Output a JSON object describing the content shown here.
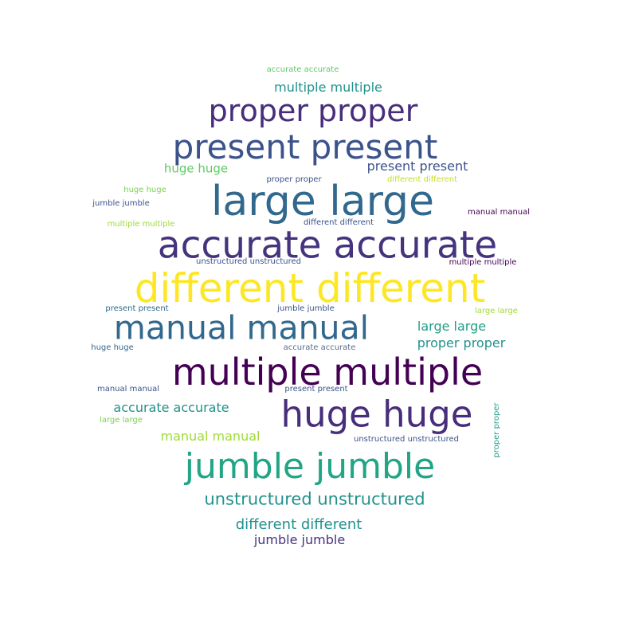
{
  "words": [
    {
      "text": "accurate accurate",
      "color": "#5ec962"
    },
    {
      "text": "multiple multiple",
      "color": "#21918c"
    },
    {
      "text": "proper proper",
      "color": "#472d7b"
    },
    {
      "text": "present present",
      "color": "#3b528b"
    },
    {
      "text": "huge huge",
      "color": "#5ec962"
    },
    {
      "text": "present present",
      "color": "#3b528b"
    },
    {
      "text": "proper proper",
      "color": "#3b528b"
    },
    {
      "text": "different different",
      "color": "#c8e020"
    },
    {
      "text": "huge huge",
      "color": "#7ad151"
    },
    {
      "text": "jumble jumble",
      "color": "#3b528b"
    },
    {
      "text": "large large",
      "color": "#31688e"
    },
    {
      "text": "manual manual",
      "color": "#440154"
    },
    {
      "text": "multiple multiple",
      "color": "#a0da39"
    },
    {
      "text": "different different",
      "color": "#3b528b"
    },
    {
      "text": "accurate accurate",
      "color": "#46337e"
    },
    {
      "text": "unstructured unstructured",
      "color": "#3b528b"
    },
    {
      "text": "multiple multiple",
      "color": "#440154"
    },
    {
      "text": "different different",
      "color": "#fde725"
    },
    {
      "text": "present present",
      "color": "#31688e"
    },
    {
      "text": "jumble jumble",
      "color": "#3b528b"
    },
    {
      "text": "large large",
      "color": "#a0da39"
    },
    {
      "text": "manual manual",
      "color": "#31688e"
    },
    {
      "text": "large large",
      "color": "#1f9e89"
    },
    {
      "text": "proper proper",
      "color": "#21918c"
    },
    {
      "text": "huge huge",
      "color": "#31688e"
    },
    {
      "text": "accurate accurate",
      "color": "#5b6b8c"
    },
    {
      "text": "multiple multiple",
      "color": "#440154"
    },
    {
      "text": "manual manual",
      "color": "#3b528b"
    },
    {
      "text": "present present",
      "color": "#3b528b"
    },
    {
      "text": "accurate accurate",
      "color": "#21918c"
    },
    {
      "text": "huge huge",
      "color": "#472d7b"
    },
    {
      "text": "large large",
      "color": "#7ad151"
    },
    {
      "text": "manual manual",
      "color": "#a0da39"
    },
    {
      "text": "unstructured unstructured",
      "color": "#3b528b"
    },
    {
      "text": "proper proper",
      "color": "#1f9e89"
    },
    {
      "text": "jumble jumble",
      "color": "#21a585"
    },
    {
      "text": "unstructured unstructured",
      "color": "#21918c"
    },
    {
      "text": "different different",
      "color": "#21918c"
    },
    {
      "text": "jumble jumble",
      "color": "#46337e"
    }
  ]
}
